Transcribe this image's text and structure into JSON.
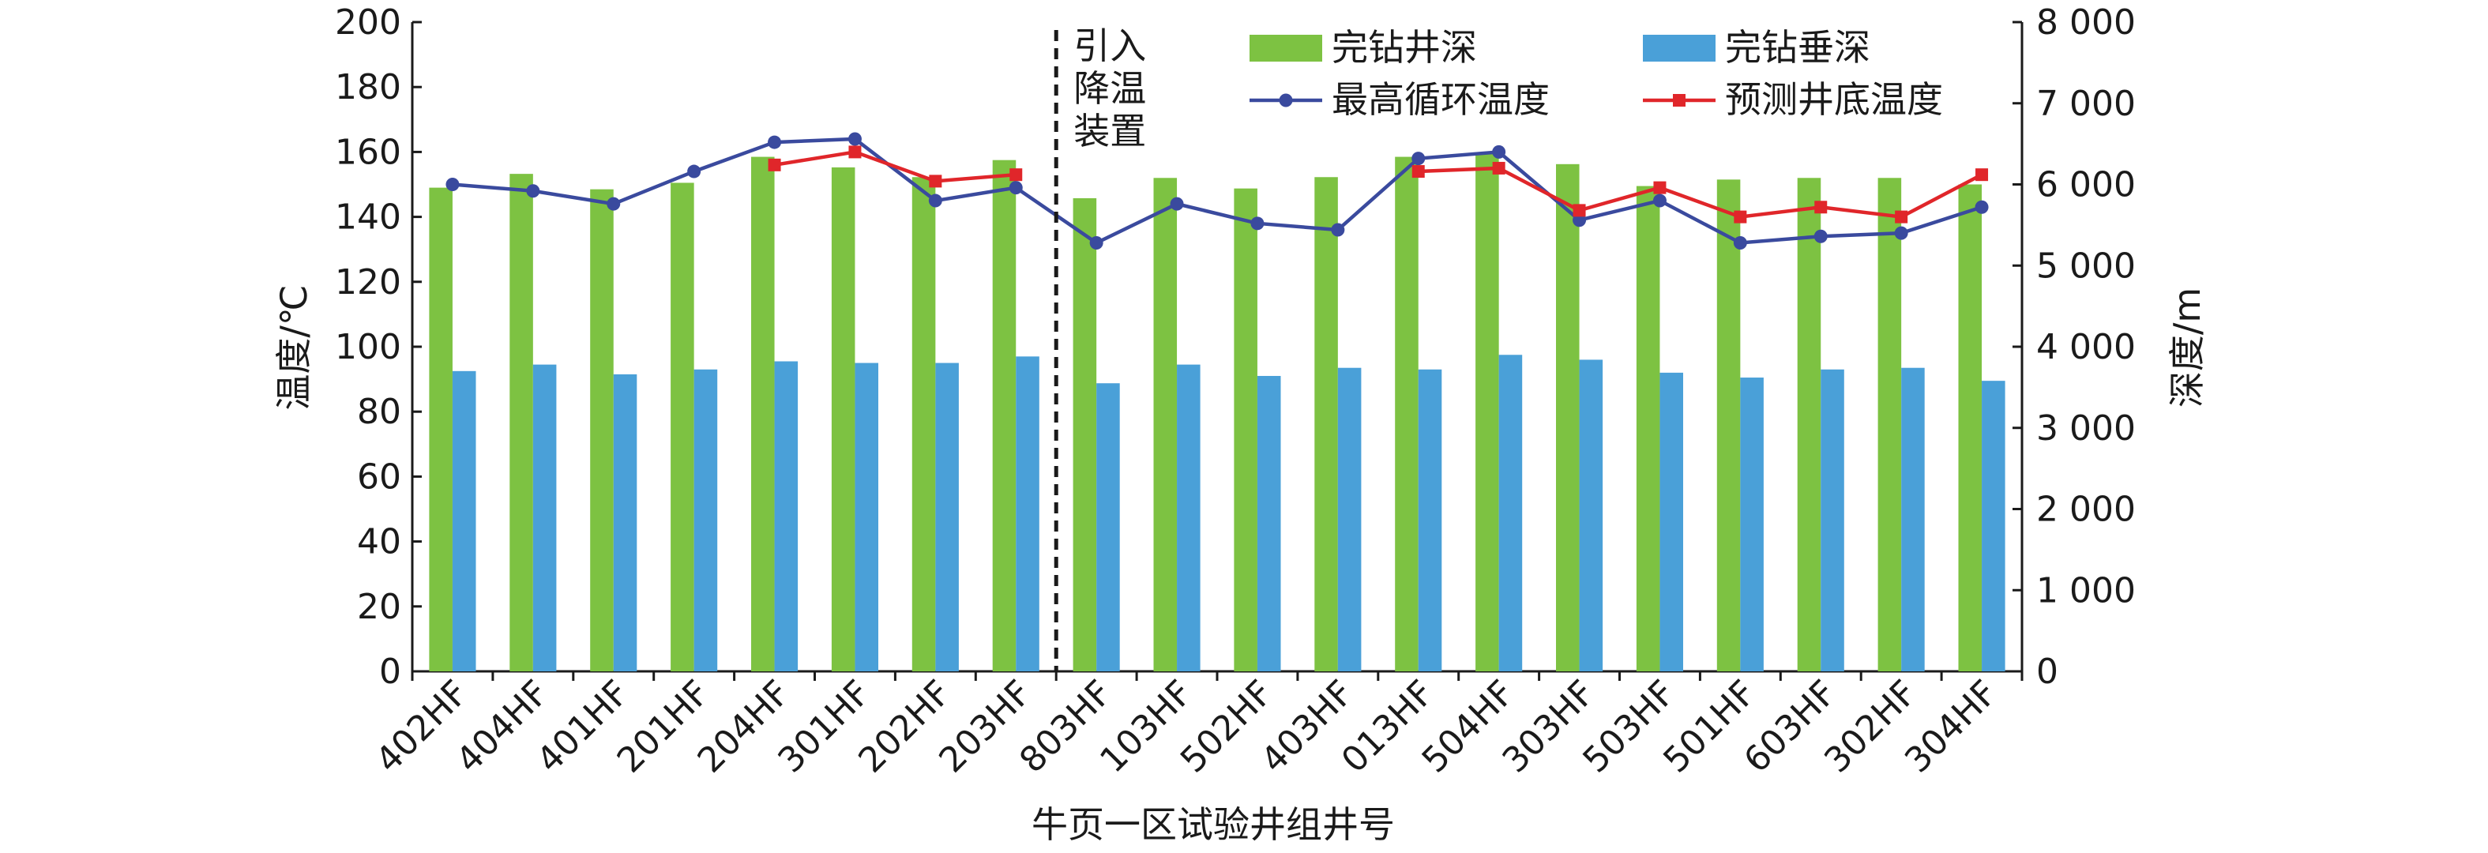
{
  "chart_data": {
    "type": "bar",
    "categories": [
      "402HF",
      "404HF",
      "401HF",
      "201HF",
      "204HF",
      "301HF",
      "202HF",
      "203HF",
      "803HF",
      "103HF",
      "502HF",
      "403HF",
      "013HF",
      "504HF",
      "303HF",
      "503HF",
      "501HF",
      "603HF",
      "302HF",
      "304HF"
    ],
    "xlabel": "牛页一区试验井组井号",
    "ylabel_left": "温度/℃",
    "ylabel_right": "深度/m",
    "ylim_left": [
      0,
      200
    ],
    "yticks_left": [
      "0",
      "20",
      "40",
      "60",
      "80",
      "100",
      "120",
      "140",
      "160",
      "180",
      "200"
    ],
    "ylim_right": [
      0,
      8000
    ],
    "yticks_right": [
      "0",
      "1 000",
      "2 000",
      "3 000",
      "4 000",
      "5 000",
      "6 000",
      "7 000",
      "8 000"
    ],
    "legend_position": "top-right",
    "grid": false,
    "annotation": {
      "lines": [
        "引入",
        "降温",
        "装置"
      ],
      "between": [
        "203HF",
        "803HF"
      ]
    },
    "bar_series": [
      {
        "name": "完钻井深",
        "axis": "right",
        "color": "#7dc242",
        "values": [
          5960,
          6130,
          5940,
          6020,
          6340,
          6210,
          6090,
          6300,
          5830,
          6080,
          5950,
          6090,
          6340,
          6390,
          6250,
          5980,
          6060,
          6080,
          6080,
          6000
        ]
      },
      {
        "name": "完钻垂深",
        "axis": "right",
        "color": "#4aa0d8",
        "values": [
          3700,
          3780,
          3660,
          3720,
          3820,
          3800,
          3800,
          3880,
          3550,
          3780,
          3640,
          3740,
          3720,
          3900,
          3840,
          3680,
          3620,
          3720,
          3740,
          3580
        ]
      }
    ],
    "line_series": [
      {
        "name": "最高循环温度",
        "axis": "left",
        "color": "#3a4a9e",
        "marker": "circle",
        "values": [
          150,
          148,
          144,
          154,
          163,
          164,
          145,
          149,
          132,
          144,
          138,
          136,
          158,
          160,
          139,
          145,
          132,
          134,
          135,
          143
        ]
      },
      {
        "name": "预测井底温度",
        "axis": "left",
        "color": "#e0262a",
        "marker": "square",
        "values": [
          null,
          null,
          null,
          null,
          156,
          160,
          151,
          153,
          null,
          null,
          null,
          null,
          154,
          155,
          142,
          149,
          140,
          143,
          140,
          153
        ]
      }
    ]
  }
}
